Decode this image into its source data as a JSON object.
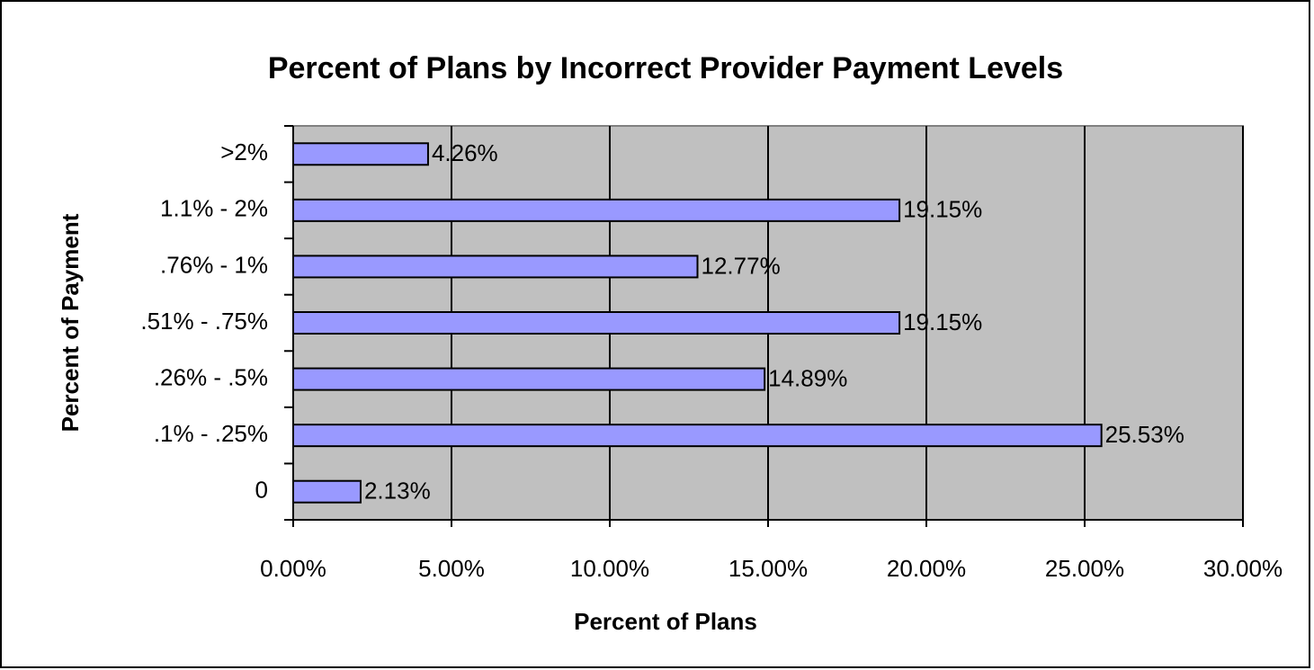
{
  "chart_data": {
    "type": "barh",
    "title": "Percent of Plans by Incorrect Provider Payment Levels",
    "x_label": "Percent of Plans",
    "y_label": "Percent of Payment",
    "categories": [
      "0",
      ".1% - .25%",
      ".26% - .5%",
      ".51% - .75%",
      ".76% - 1%",
      "1.1% - 2%",
      ">2%"
    ],
    "values": [
      2.13,
      25.53,
      14.89,
      19.15,
      12.77,
      19.15,
      4.26
    ],
    "value_labels": [
      "2.13%",
      "25.53%",
      "14.89%",
      "19.15%",
      "12.77%",
      "19.15%",
      "4.26%"
    ],
    "color": "#9999ff",
    "xlim": [
      0,
      30
    ],
    "xticks": [
      {
        "value": 0,
        "label": "0.00%"
      },
      {
        "value": 5,
        "label": "5.00%"
      },
      {
        "value": 10,
        "label": "10.00%"
      },
      {
        "value": 15,
        "label": "15.00%"
      },
      {
        "value": 20,
        "label": "20.00%"
      },
      {
        "value": 25,
        "label": "25.00%"
      },
      {
        "value": 30,
        "label": "30.00%"
      }
    ],
    "grid": true
  }
}
